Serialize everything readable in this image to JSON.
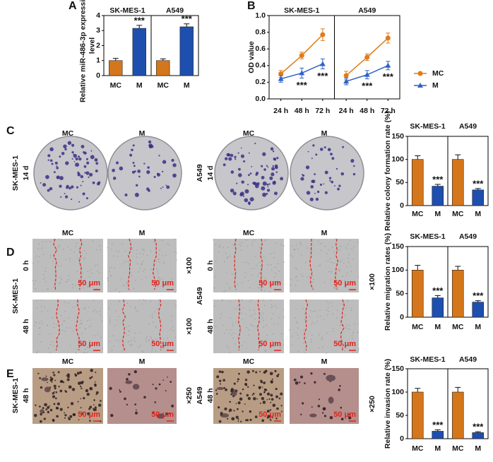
{
  "panel_labels": [
    "A",
    "B",
    "C",
    "D",
    "E"
  ],
  "chart_data": [
    {
      "type": "bar",
      "ylabel": "Relative miR-486-3p expression level",
      "ylim": [
        0,
        4
      ],
      "yticks": [
        0,
        1,
        2,
        3,
        4
      ],
      "colors": [
        "#d4761c",
        "#1f4fae"
      ],
      "facets": [
        {
          "title": "SK-MES-1",
          "categories": [
            "MC",
            "M"
          ],
          "values": [
            1.0,
            3.15
          ],
          "errors": [
            0.15,
            0.2
          ],
          "annotations": [
            null,
            "***"
          ]
        },
        {
          "title": "A549",
          "categories": [
            "MC",
            "M"
          ],
          "values": [
            1.0,
            3.25
          ],
          "errors": [
            0.12,
            0.2
          ],
          "annotations": [
            null,
            "***"
          ]
        }
      ]
    },
    {
      "type": "line",
      "ylabel": "OD value",
      "ylim": [
        0,
        1
      ],
      "yticks": [
        {
          "value": 0,
          "label": "0.0"
        },
        {
          "value": 0.2,
          "label": "0.2"
        },
        {
          "value": 0.4,
          "label": "0.4"
        },
        {
          "value": 0.6,
          "label": "0.6"
        },
        {
          "value": 0.8,
          "label": "0.8"
        },
        {
          "value": 1,
          "label": "1.0"
        }
      ],
      "legend": "right",
      "facets": [
        {
          "title": "SK-MES-1",
          "categories": [
            "24 h",
            "48 h",
            "72 h"
          ],
          "series": [
            {
              "name": "MC",
              "color": "#e07b1a",
              "marker": "circle",
              "values": [
                0.3,
                0.52,
                0.77
              ],
              "errors": [
                0.04,
                0.04,
                0.07
              ]
            },
            {
              "name": "M",
              "color": "#2f62c8",
              "marker": "triangle",
              "values": [
                0.24,
                0.31,
                0.42
              ],
              "errors": [
                0.04,
                0.06,
                0.06
              ],
              "annotations": [
                null,
                "***",
                "***"
              ]
            }
          ]
        },
        {
          "title": "A549",
          "categories": [
            "24 h",
            "48 h",
            "72 h"
          ],
          "series": [
            {
              "name": "MC",
              "color": "#e07b1a",
              "marker": "circle",
              "values": [
                0.28,
                0.5,
                0.73
              ],
              "errors": [
                0.05,
                0.04,
                0.06
              ]
            },
            {
              "name": "M",
              "color": "#2f62c8",
              "marker": "triangle",
              "values": [
                0.21,
                0.29,
                0.4
              ],
              "errors": [
                0.04,
                0.05,
                0.05
              ],
              "annotations": [
                null,
                "***",
                "***"
              ]
            }
          ]
        }
      ]
    },
    {
      "type": "bar",
      "ylabel": "Relative colony formation rate (%)",
      "ylim": [
        0,
        150
      ],
      "yticks": [
        0,
        50,
        100,
        150
      ],
      "colors": [
        "#d4761c",
        "#1f4fae"
      ],
      "facets": [
        {
          "title": "SK-MES-1",
          "categories": [
            "MC",
            "M"
          ],
          "values": [
            100,
            42
          ],
          "errors": [
            8,
            4
          ],
          "annotations": [
            null,
            "***"
          ]
        },
        {
          "title": "A549",
          "categories": [
            "MC",
            "M"
          ],
          "values": [
            100,
            34
          ],
          "errors": [
            10,
            3
          ],
          "annotations": [
            null,
            "***"
          ]
        }
      ]
    },
    {
      "type": "bar",
      "ylabel": "Relative migration rates (%)",
      "ylim": [
        0,
        150
      ],
      "yticks": [
        0,
        50,
        100,
        150
      ],
      "colors": [
        "#d4761c",
        "#1f4fae"
      ],
      "facets": [
        {
          "title": "SK-MES-1",
          "categories": [
            "MC",
            "M"
          ],
          "values": [
            100,
            41
          ],
          "errors": [
            10,
            5
          ],
          "annotations": [
            null,
            "***"
          ]
        },
        {
          "title": "A549",
          "categories": [
            "MC",
            "M"
          ],
          "values": [
            100,
            32
          ],
          "errors": [
            8,
            3
          ],
          "annotations": [
            null,
            "***"
          ]
        }
      ]
    },
    {
      "type": "bar",
      "ylabel": "Relative invasion rate (%)",
      "ylim": [
        0,
        150
      ],
      "yticks": [
        0,
        50,
        100,
        150
      ],
      "colors": [
        "#d4761c",
        "#1f4fae"
      ],
      "facets": [
        {
          "title": "SK-MES-1",
          "categories": [
            "MC",
            "M"
          ],
          "values": [
            100,
            16
          ],
          "errors": [
            8,
            3
          ],
          "annotations": [
            null,
            "***"
          ]
        },
        {
          "title": "A549",
          "categories": [
            "MC",
            "M"
          ],
          "values": [
            100,
            13
          ],
          "errors": [
            10,
            2
          ],
          "annotations": [
            null,
            "***"
          ]
        }
      ]
    }
  ],
  "image_panels": {
    "C": {
      "columns": [
        "MC",
        "M"
      ],
      "groups": [
        {
          "cell_line": "SK-MES-1",
          "time": "14 d"
        },
        {
          "cell_line": "A549",
          "time": "14 d"
        }
      ]
    },
    "D": {
      "columns": [
        "MC",
        "M"
      ],
      "groups": [
        {
          "cell_line": "SK-MES-1",
          "times": [
            "0 h",
            "48 h"
          ]
        },
        {
          "cell_line": "A549",
          "times": [
            "0 h",
            "48 h"
          ]
        }
      ],
      "magnification": "×100",
      "scale_bar": "50 μm"
    },
    "E": {
      "columns": [
        "MC",
        "M"
      ],
      "groups": [
        {
          "cell_line": "SK-MES-1",
          "time": "48 h"
        },
        {
          "cell_line": "A549",
          "time": "48 h"
        }
      ],
      "magnification": "×250",
      "scale_bar": "50 μm"
    }
  }
}
